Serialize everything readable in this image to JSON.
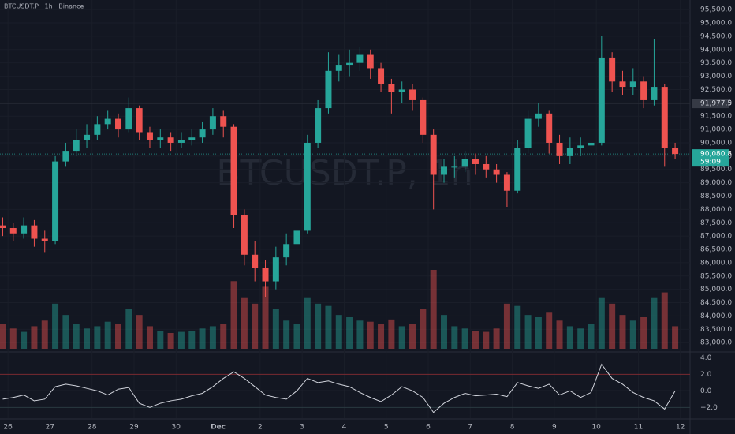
{
  "chart_data": {
    "type": "candlestick",
    "title": "BTCUSDT.P · 1h · Binance",
    "watermark": "BTCUSDT.P, 1h",
    "up_color": "#26a69a",
    "down_color": "#ef5350",
    "x": [
      25.875,
      26.125,
      26.375,
      26.625,
      26.875,
      27.125,
      27.375,
      27.625,
      27.875,
      28.125,
      28.375,
      28.625,
      28.875,
      29.125,
      29.375,
      29.625,
      29.875,
      30.125,
      30.375,
      30.625,
      30.875,
      31.125,
      31.375,
      31.625,
      31.875,
      32.125,
      32.375,
      32.625,
      32.875,
      33.125,
      33.375,
      33.625,
      33.875,
      34.125,
      34.375,
      34.625,
      34.875,
      35.125,
      35.375,
      35.625,
      35.875,
      36.125,
      36.375,
      36.625,
      36.875,
      37.125,
      37.375,
      37.625,
      37.875,
      38.125,
      38.375,
      38.625,
      38.875,
      39.125,
      39.375,
      39.625,
      39.875,
      40.125,
      40.375,
      40.625,
      40.875,
      41.125,
      41.375,
      41.625,
      41.875
    ],
    "open": [
      87400,
      87300,
      87100,
      87400,
      86900,
      86800,
      89800,
      90200,
      90600,
      90800,
      91200,
      91400,
      91000,
      91800,
      90900,
      90600,
      90700,
      90500,
      90600,
      90700,
      91000,
      91500,
      91100,
      87800,
      86300,
      85800,
      85300,
      86200,
      86700,
      87200,
      90500,
      91800,
      93200,
      93400,
      93500,
      93800,
      93300,
      92700,
      92400,
      92500,
      92100,
      90800,
      89300,
      89600,
      89600,
      89900,
      89700,
      89500,
      89300,
      88700,
      90300,
      91400,
      91600,
      90500,
      90000,
      90300,
      90400,
      90500,
      93700,
      92800,
      92600,
      92800,
      92100,
      92600,
      90300
    ],
    "high": [
      87700,
      87500,
      87700,
      87600,
      87200,
      90000,
      90500,
      91000,
      91200,
      91500,
      91700,
      91600,
      92200,
      91900,
      91100,
      91000,
      90900,
      90900,
      91000,
      91300,
      91800,
      91700,
      91200,
      88000,
      86800,
      86100,
      86600,
      87100,
      87600,
      90800,
      92100,
      93900,
      93800,
      94000,
      94100,
      94000,
      93500,
      92900,
      92800,
      92700,
      92200,
      91000,
      89900,
      90000,
      90200,
      90100,
      90000,
      89700,
      89400,
      90600,
      91700,
      92000,
      91700,
      90800,
      90700,
      90700,
      90800,
      94500,
      93900,
      93200,
      93300,
      93000,
      94400,
      92700,
      90500
    ],
    "low": [
      87000,
      86800,
      86900,
      86600,
      86400,
      86700,
      89600,
      90000,
      90300,
      90600,
      91000,
      90700,
      90900,
      90600,
      90300,
      90300,
      90200,
      90300,
      90400,
      90500,
      90800,
      90700,
      87300,
      85900,
      85300,
      84700,
      85000,
      85900,
      86400,
      87100,
      90300,
      91600,
      92800,
      93000,
      93200,
      92900,
      92400,
      91600,
      92000,
      91700,
      90500,
      88000,
      89000,
      89200,
      89400,
      89300,
      89200,
      89000,
      88100,
      88600,
      90100,
      91100,
      90100,
      89700,
      89700,
      90000,
      90100,
      90400,
      92400,
      92300,
      92300,
      91800,
      91900,
      89600,
      89900
    ],
    "close": [
      87300,
      87100,
      87400,
      86900,
      86800,
      89800,
      90200,
      90600,
      90800,
      91200,
      91400,
      91000,
      91800,
      90900,
      90600,
      90700,
      90500,
      90600,
      90700,
      91000,
      91500,
      91100,
      87800,
      86300,
      85800,
      85300,
      86200,
      86700,
      87200,
      90500,
      91800,
      93200,
      93400,
      93500,
      93800,
      93300,
      92700,
      92400,
      92500,
      92100,
      90800,
      89300,
      89600,
      89600,
      89900,
      89700,
      89500,
      89300,
      88700,
      90300,
      91400,
      91600,
      90500,
      90000,
      90300,
      90400,
      90500,
      93700,
      92800,
      92600,
      92800,
      92100,
      92600,
      90300,
      90080.8
    ],
    "volume": [
      22,
      18,
      15,
      20,
      25,
      40,
      30,
      22,
      18,
      20,
      24,
      22,
      35,
      30,
      20,
      16,
      14,
      15,
      16,
      18,
      20,
      22,
      60,
      45,
      40,
      55,
      35,
      25,
      22,
      45,
      40,
      38,
      30,
      28,
      25,
      24,
      22,
      26,
      20,
      22,
      35,
      70,
      30,
      20,
      18,
      16,
      15,
      18,
      40,
      38,
      30,
      28,
      32,
      25,
      20,
      18,
      22,
      45,
      40,
      30,
      25,
      28,
      45,
      50,
      20
    ],
    "oscillator": [
      -1.0,
      -0.8,
      -0.5,
      -1.2,
      -1.0,
      0.5,
      0.8,
      0.6,
      0.3,
      0.0,
      -0.5,
      0.2,
      0.4,
      -1.5,
      -2.0,
      -1.5,
      -1.2,
      -1.0,
      -0.6,
      -0.3,
      0.5,
      1.5,
      2.3,
      1.5,
      0.5,
      -0.5,
      -0.8,
      -1.0,
      0.0,
      1.5,
      1.0,
      1.2,
      0.8,
      0.5,
      -0.2,
      -0.8,
      -1.3,
      -0.5,
      0.5,
      0.0,
      -0.8,
      -2.6,
      -1.5,
      -0.8,
      -0.3,
      -0.6,
      -0.5,
      -0.4,
      -0.7,
      1.0,
      0.6,
      0.3,
      0.8,
      -0.5,
      0.0,
      -0.8,
      -0.2,
      3.2,
      1.5,
      0.8,
      -0.2,
      -0.8,
      -1.2,
      -2.2,
      0.0
    ],
    "xlim": [
      25.81,
      42.23
    ],
    "xticks": [
      26,
      27,
      28,
      29,
      30,
      {
        "value": 31,
        "label": "Dec"
      },
      {
        "value": 32,
        "label": "2"
      },
      {
        "value": 33,
        "label": "3"
      },
      {
        "value": 34,
        "label": "4"
      },
      {
        "value": 35,
        "label": "5"
      },
      {
        "value": 36,
        "label": "6"
      },
      {
        "value": 37,
        "label": "7"
      },
      {
        "value": 38,
        "label": "8"
      },
      {
        "value": 39,
        "label": "9"
      },
      {
        "value": 40,
        "label": "10"
      },
      {
        "value": 41,
        "label": "11"
      },
      {
        "value": 42,
        "label": "12"
      }
    ],
    "ylim": [
      82680,
      95860
    ],
    "yticks": [
      {
        "value": 95500,
        "label": "95,500.0"
      },
      {
        "value": 95000,
        "label": "95,000.0"
      },
      {
        "value": 94500,
        "label": "94,500.0"
      },
      {
        "value": 94000,
        "label": "94,000.0"
      },
      {
        "value": 93500,
        "label": "93,500.0"
      },
      {
        "value": 93000,
        "label": "93,000.0"
      },
      {
        "value": 92500,
        "label": "92,500.0"
      },
      {
        "value": 92000,
        "label": "92,000.0"
      },
      {
        "value": 91500,
        "label": "91,500.0"
      },
      {
        "value": 91000,
        "label": "91,000.0"
      },
      {
        "value": 90500,
        "label": "90,500.0"
      },
      {
        "value": 90000,
        "label": "90,000.0"
      },
      {
        "value": 89500,
        "label": "89,500.0"
      },
      {
        "value": 89000,
        "label": "89,000.0"
      },
      {
        "value": 88500,
        "label": "88,500.0"
      },
      {
        "value": 88000,
        "label": "88,000.0"
      },
      {
        "value": 87500,
        "label": "87,500.0"
      },
      {
        "value": 87000,
        "label": "87,000.0"
      },
      {
        "value": 86500,
        "label": "86,500.0"
      },
      {
        "value": 86000,
        "label": "86,000.0"
      },
      {
        "value": 85500,
        "label": "85,500.0"
      },
      {
        "value": 85000,
        "label": "85,000.0"
      },
      {
        "value": 84500,
        "label": "84,500.0"
      },
      {
        "value": 84000,
        "label": "84,000.0"
      },
      {
        "value": 83500,
        "label": "83,500.0"
      },
      {
        "value": 83000,
        "label": "83,000.0"
      }
    ],
    "price_line": {
      "value": 91977.5,
      "label": "91,977.5"
    },
    "last_price": {
      "value": 90080.8,
      "label": "90,080.8",
      "countdown": "59:09"
    },
    "y2lim": [
      -3.3,
      4.6
    ],
    "y2ticks": [
      {
        "value": 4,
        "label": "4.0"
      },
      {
        "value": 2,
        "label": "2.0"
      },
      {
        "value": 0,
        "label": "0.0"
      },
      {
        "value": -2,
        "label": "−2.0"
      }
    ]
  }
}
